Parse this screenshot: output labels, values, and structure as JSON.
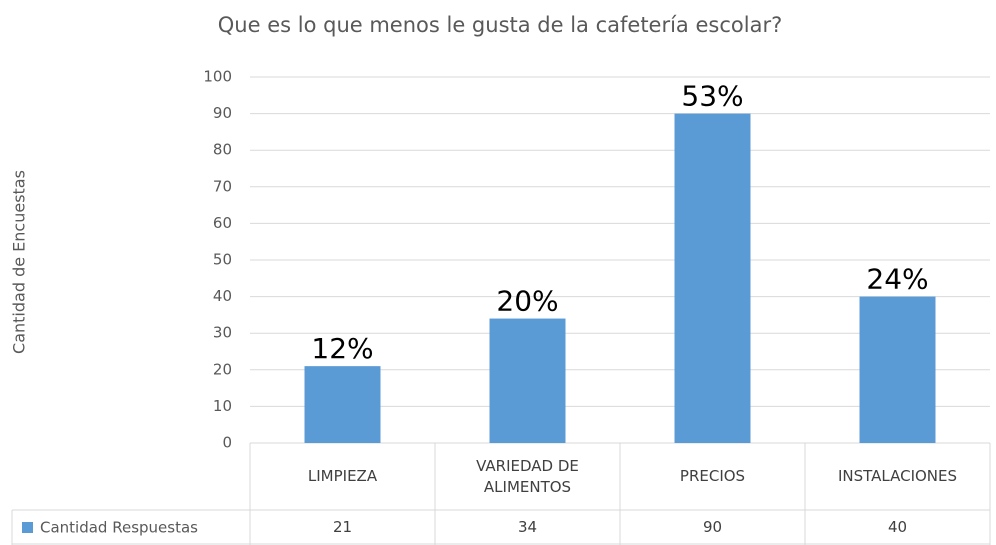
{
  "chart_data": {
    "type": "bar",
    "title": "Que es lo que menos le gusta de la cafetería escolar?",
    "y_label": "Cantidad de Encuestas",
    "categories": [
      "LIMPIEZA",
      "VARIEDAD DE ALIMENTOS",
      "PRECIOS",
      "INSTALACIONES"
    ],
    "series": [
      {
        "name": "Cantidad Respuestas",
        "color": "#5b9bd5",
        "values": [
          21,
          34,
          90,
          40
        ]
      }
    ],
    "annotations": [
      "12%",
      "20%",
      "53%",
      "24%"
    ],
    "ylim": [
      0,
      100
    ],
    "yticks": [
      0,
      10,
      20,
      30,
      40,
      50,
      60,
      70,
      80,
      90,
      100
    ],
    "grid": true,
    "data_table": true
  }
}
